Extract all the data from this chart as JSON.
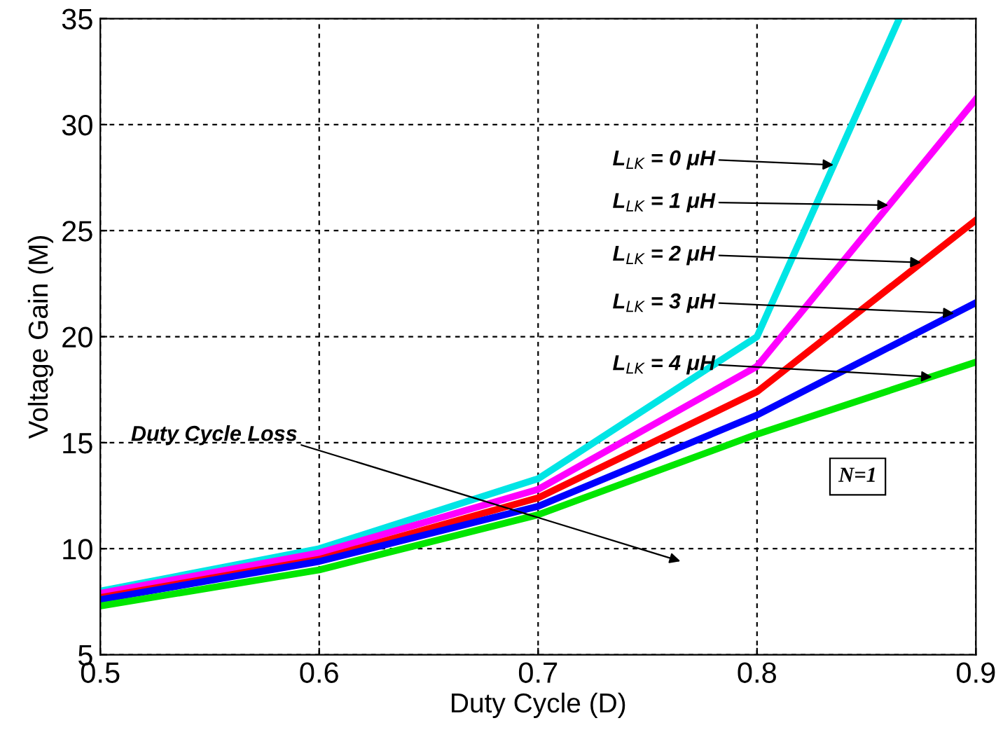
{
  "chart_data": {
    "type": "line",
    "xlabel": "Duty Cycle (D)",
    "ylabel": "Voltage Gain (M)",
    "x": [
      0.5,
      0.6,
      0.7,
      0.8,
      0.9
    ],
    "series": [
      {
        "color": "#00e5e5",
        "x": [
          0.5,
          0.6,
          0.7,
          0.8,
          0.865
        ],
        "values": [
          8.0,
          10.0,
          13.3,
          20.0,
          35.0
        ]
      },
      {
        "color": "#ff00ff",
        "values": [
          7.9,
          9.8,
          12.8,
          18.6,
          31.2
        ]
      },
      {
        "color": "#ff0000",
        "values": [
          7.7,
          9.5,
          12.4,
          17.4,
          25.5
        ]
      },
      {
        "color": "#0000ff",
        "values": [
          7.6,
          9.4,
          12.0,
          16.3,
          21.6
        ]
      },
      {
        "color": "#00e600",
        "values": [
          7.3,
          9.0,
          11.6,
          15.4,
          18.8
        ]
      }
    ],
    "xlim": [
      0.5,
      0.9
    ],
    "ylim": [
      5,
      35
    ],
    "xticks": [
      0.5,
      0.6,
      0.7,
      0.8,
      0.9
    ],
    "yticks": [
      5,
      10,
      15,
      20,
      25,
      30,
      35
    ],
    "grid": true,
    "legend": false,
    "marker": "none",
    "line_style": "solid",
    "annotations": [
      {
        "text": "L$_{LK}$ = 0 μH",
        "x": 0.835,
        "y": 28.1
      },
      {
        "text": "L$_{LK}$ = 1 μH",
        "x": 0.86,
        "y": 26.2
      },
      {
        "text": "L$_{LK}$ = 2 μH",
        "x": 0.875,
        "y": 23.5
      },
      {
        "text": "L$_{LK}$ = 3 μH",
        "x": 0.89,
        "y": 21.1
      },
      {
        "text": "L$_{LK}$ = 4 μH",
        "x": 0.88,
        "y": 18.1
      },
      "Duty Cycle Loss",
      "N=1"
    ]
  }
}
